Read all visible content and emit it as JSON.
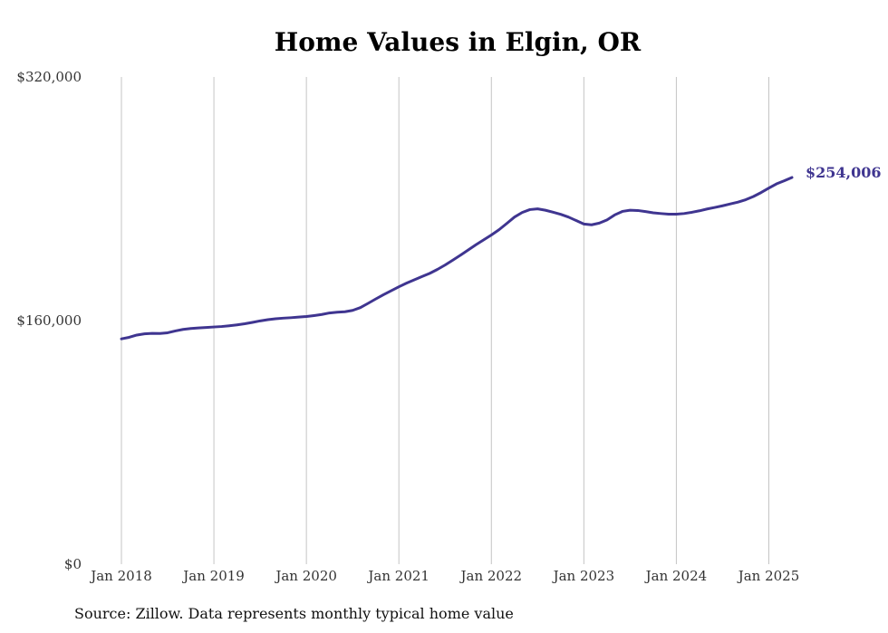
{
  "title": "Home Values in Elgin, OR",
  "source": "Source: Zillow. Data represents monthly typical home value",
  "line_color": "#3f3590",
  "chart_data": {
    "type": "line",
    "title": "Home Values in Elgin, OR",
    "xlabel": "",
    "ylabel": "",
    "ylim": [
      0,
      320000
    ],
    "yticks": [
      0,
      160000,
      320000
    ],
    "ytick_labels": [
      "$0",
      "$160,000",
      "$320,000"
    ],
    "xlim": [
      "2018-01",
      "2025-04"
    ],
    "xticks": [
      "2018-01",
      "2019-01",
      "2020-01",
      "2021-01",
      "2022-01",
      "2023-01",
      "2024-01",
      "2025-01"
    ],
    "xtick_labels": [
      "Jan 2018",
      "Jan 2019",
      "Jan 2020",
      "Jan 2021",
      "Jan 2022",
      "Jan 2023",
      "Jan 2024",
      "Jan 2025"
    ],
    "grid": "vertical",
    "end_label": "$254,006",
    "series": [
      {
        "x": [
          "2018-01",
          "2018-02",
          "2018-03",
          "2018-04",
          "2018-05",
          "2018-06",
          "2018-07",
          "2018-08",
          "2018-09",
          "2018-10",
          "2018-11",
          "2018-12",
          "2019-01",
          "2019-02",
          "2019-03",
          "2019-04",
          "2019-05",
          "2019-06",
          "2019-07",
          "2019-08",
          "2019-09",
          "2019-10",
          "2019-11",
          "2019-12",
          "2020-01",
          "2020-02",
          "2020-03",
          "2020-04",
          "2020-05",
          "2020-06",
          "2020-07",
          "2020-08",
          "2020-09",
          "2020-10",
          "2020-11",
          "2020-12",
          "2021-01",
          "2021-02",
          "2021-03",
          "2021-04",
          "2021-05",
          "2021-06",
          "2021-07",
          "2021-08",
          "2021-09",
          "2021-10",
          "2021-11",
          "2021-12",
          "2022-01",
          "2022-02",
          "2022-03",
          "2022-04",
          "2022-05",
          "2022-06",
          "2022-07",
          "2022-08",
          "2022-09",
          "2022-10",
          "2022-11",
          "2022-12",
          "2023-01",
          "2023-02",
          "2023-03",
          "2023-04",
          "2023-05",
          "2023-06",
          "2023-07",
          "2023-08",
          "2023-09",
          "2023-10",
          "2023-11",
          "2023-12",
          "2024-01",
          "2024-02",
          "2024-03",
          "2024-04",
          "2024-05",
          "2024-06",
          "2024-07",
          "2024-08",
          "2024-09",
          "2024-10",
          "2024-11",
          "2024-12",
          "2025-01",
          "2025-02",
          "2025-03",
          "2025-04"
        ],
        "values": [
          148000,
          149000,
          150500,
          151300,
          151600,
          151500,
          152000,
          153200,
          154200,
          154800,
          155200,
          155500,
          155800,
          156100,
          156600,
          157200,
          157900,
          158800,
          159800,
          160600,
          161200,
          161600,
          161900,
          162300,
          162700,
          163300,
          164000,
          165000,
          165500,
          165800,
          166700,
          168500,
          171300,
          174200,
          177000,
          179600,
          182200,
          184600,
          186800,
          188900,
          191000,
          193600,
          196500,
          199700,
          203000,
          206400,
          209800,
          213000,
          216200,
          219700,
          223800,
          228000,
          231000,
          232900,
          233400,
          232500,
          231200,
          229800,
          228000,
          225700,
          223400,
          222900,
          224000,
          226100,
          229400,
          231700,
          232500,
          232300,
          231600,
          230800,
          230300,
          229900,
          229900,
          230300,
          231100,
          232100,
          233300,
          234300,
          235400,
          236600,
          237800,
          239400,
          241500,
          244100,
          247000,
          249800,
          251800,
          254006
        ]
      }
    ]
  }
}
